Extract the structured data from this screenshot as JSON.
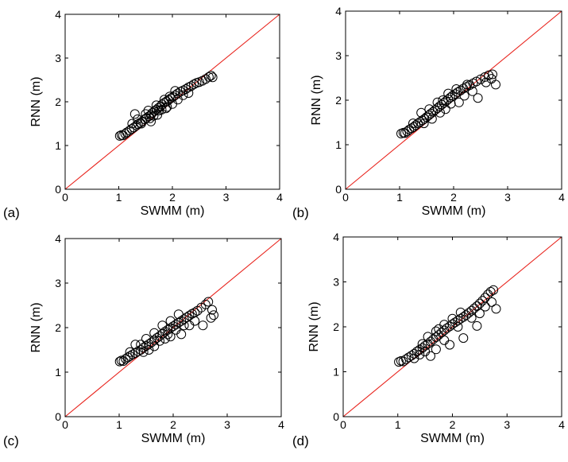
{
  "chart_data": [
    {
      "type": "scatter",
      "panel_label": "(a)",
      "xlabel": "SWMM (m)",
      "ylabel": "RNN (m)",
      "xlim": [
        0,
        4
      ],
      "ylim": [
        0,
        4
      ],
      "xticks": [
        "0",
        "1",
        "2",
        "3",
        "4"
      ],
      "yticks": [
        "0",
        "1",
        "2",
        "3",
        "4"
      ],
      "reference_line": {
        "from": [
          0,
          0
        ],
        "to": [
          4,
          4
        ],
        "color": "#e8211a"
      },
      "marker": "open-circle",
      "grid": false,
      "points": [
        [
          1.02,
          1.22
        ],
        [
          1.05,
          1.24
        ],
        [
          1.08,
          1.23
        ],
        [
          1.12,
          1.27
        ],
        [
          1.15,
          1.3
        ],
        [
          1.2,
          1.34
        ],
        [
          1.24,
          1.38
        ],
        [
          1.28,
          1.41
        ],
        [
          1.33,
          1.46
        ],
        [
          1.36,
          1.49
        ],
        [
          1.4,
          1.52
        ],
        [
          1.44,
          1.55
        ],
        [
          1.48,
          1.6
        ],
        [
          1.52,
          1.63
        ],
        [
          1.56,
          1.67
        ],
        [
          1.6,
          1.7
        ],
        [
          1.63,
          1.75
        ],
        [
          1.67,
          1.79
        ],
        [
          1.7,
          1.82
        ],
        [
          1.74,
          1.86
        ],
        [
          1.78,
          1.9
        ],
        [
          1.81,
          1.94
        ],
        [
          1.85,
          1.98
        ],
        [
          1.89,
          2.01
        ],
        [
          1.93,
          2.04
        ],
        [
          1.97,
          2.08
        ],
        [
          2.01,
          2.11
        ],
        [
          2.05,
          2.15
        ],
        [
          2.1,
          2.19
        ],
        [
          2.15,
          2.23
        ],
        [
          2.2,
          2.26
        ],
        [
          2.25,
          2.29
        ],
        [
          2.3,
          2.33
        ],
        [
          2.35,
          2.36
        ],
        [
          2.4,
          2.4
        ],
        [
          2.45,
          2.43
        ],
        [
          2.5,
          2.45
        ],
        [
          2.56,
          2.48
        ],
        [
          2.62,
          2.52
        ],
        [
          2.68,
          2.57
        ],
        [
          2.72,
          2.6
        ],
        [
          2.75,
          2.56
        ],
        [
          1.35,
          1.6
        ],
        [
          1.5,
          1.72
        ],
        [
          1.42,
          1.5
        ],
        [
          1.58,
          1.62
        ],
        [
          1.65,
          1.68
        ],
        [
          1.75,
          1.8
        ],
        [
          1.8,
          1.82
        ],
        [
          1.9,
          1.88
        ],
        [
          2.0,
          1.95
        ],
        [
          2.1,
          2.05
        ],
        [
          2.2,
          2.15
        ],
        [
          2.3,
          2.2
        ],
        [
          1.7,
          1.92
        ],
        [
          1.85,
          2.05
        ],
        [
          1.95,
          2.12
        ],
        [
          2.05,
          2.25
        ],
        [
          1.25,
          1.5
        ],
        [
          1.3,
          1.72
        ],
        [
          1.55,
          1.8
        ],
        [
          1.6,
          1.55
        ],
        [
          1.72,
          1.7
        ],
        [
          1.88,
          1.85
        ]
      ]
    },
    {
      "type": "scatter",
      "panel_label": "(b)",
      "xlabel": "SWMM (m)",
      "ylabel": "RNN (m)",
      "xlim": [
        0,
        4
      ],
      "ylim": [
        0,
        4
      ],
      "xticks": [
        "0",
        "1",
        "2",
        "3",
        "4"
      ],
      "yticks": [
        "0",
        "1",
        "2",
        "3",
        "4"
      ],
      "reference_line": {
        "from": [
          0,
          0
        ],
        "to": [
          4,
          4
        ],
        "color": "#e8211a"
      },
      "marker": "open-circle",
      "grid": false,
      "points": [
        [
          1.03,
          1.25
        ],
        [
          1.07,
          1.27
        ],
        [
          1.1,
          1.26
        ],
        [
          1.14,
          1.3
        ],
        [
          1.18,
          1.34
        ],
        [
          1.22,
          1.37
        ],
        [
          1.26,
          1.4
        ],
        [
          1.3,
          1.44
        ],
        [
          1.34,
          1.48
        ],
        [
          1.38,
          1.51
        ],
        [
          1.42,
          1.55
        ],
        [
          1.46,
          1.58
        ],
        [
          1.5,
          1.62
        ],
        [
          1.54,
          1.66
        ],
        [
          1.58,
          1.7
        ],
        [
          1.62,
          1.74
        ],
        [
          1.66,
          1.78
        ],
        [
          1.7,
          1.82
        ],
        [
          1.74,
          1.86
        ],
        [
          1.78,
          1.9
        ],
        [
          1.82,
          1.94
        ],
        [
          1.86,
          1.98
        ],
        [
          1.9,
          2.02
        ],
        [
          1.94,
          2.06
        ],
        [
          1.98,
          2.1
        ],
        [
          2.03,
          2.14
        ],
        [
          2.08,
          2.18
        ],
        [
          2.13,
          2.22
        ],
        [
          2.18,
          2.26
        ],
        [
          2.24,
          2.3
        ],
        [
          2.3,
          2.34
        ],
        [
          2.36,
          2.38
        ],
        [
          2.42,
          2.42
        ],
        [
          2.5,
          2.47
        ],
        [
          2.58,
          2.52
        ],
        [
          2.65,
          2.56
        ],
        [
          2.72,
          2.58
        ],
        [
          2.78,
          2.35
        ],
        [
          2.7,
          2.48
        ],
        [
          2.6,
          2.4
        ],
        [
          2.45,
          2.05
        ],
        [
          2.35,
          2.2
        ],
        [
          2.2,
          2.1
        ],
        [
          2.1,
          1.95
        ],
        [
          1.95,
          1.92
        ],
        [
          1.85,
          1.8
        ],
        [
          1.75,
          1.72
        ],
        [
          1.6,
          1.58
        ],
        [
          1.45,
          1.48
        ],
        [
          1.4,
          1.72
        ],
        [
          1.55,
          1.8
        ],
        [
          1.25,
          1.48
        ],
        [
          1.7,
          1.95
        ],
        [
          1.9,
          2.15
        ],
        [
          2.05,
          2.25
        ],
        [
          2.25,
          2.35
        ],
        [
          1.8,
          2.0
        ]
      ]
    },
    {
      "type": "scatter",
      "panel_label": "(c)",
      "xlabel": "SWMM (m)",
      "ylabel": "RNN (m)",
      "xlim": [
        0,
        4
      ],
      "ylim": [
        0,
        4
      ],
      "xticks": [
        "0",
        "1",
        "2",
        "3",
        "4"
      ],
      "yticks": [
        "0",
        "1",
        "2",
        "3",
        "4"
      ],
      "reference_line": {
        "from": [
          0,
          0
        ],
        "to": [
          4,
          4
        ],
        "color": "#e8211a"
      },
      "marker": "open-circle",
      "grid": false,
      "points": [
        [
          1.01,
          1.24
        ],
        [
          1.04,
          1.26
        ],
        [
          1.08,
          1.25
        ],
        [
          1.12,
          1.3
        ],
        [
          1.16,
          1.33
        ],
        [
          1.2,
          1.36
        ],
        [
          1.25,
          1.4
        ],
        [
          1.3,
          1.43
        ],
        [
          1.35,
          1.47
        ],
        [
          1.4,
          1.5
        ],
        [
          1.45,
          1.55
        ],
        [
          1.5,
          1.59
        ],
        [
          1.55,
          1.63
        ],
        [
          1.6,
          1.67
        ],
        [
          1.65,
          1.72
        ],
        [
          1.7,
          1.77
        ],
        [
          1.75,
          1.81
        ],
        [
          1.8,
          1.86
        ],
        [
          1.85,
          1.91
        ],
        [
          1.9,
          1.95
        ],
        [
          1.95,
          1.99
        ],
        [
          2.0,
          2.03
        ],
        [
          2.05,
          2.07
        ],
        [
          2.1,
          2.11
        ],
        [
          2.15,
          2.15
        ],
        [
          2.2,
          2.19
        ],
        [
          2.25,
          2.23
        ],
        [
          2.3,
          2.27
        ],
        [
          2.35,
          2.31
        ],
        [
          2.4,
          2.34
        ],
        [
          2.45,
          2.38
        ],
        [
          2.52,
          2.45
        ],
        [
          2.6,
          2.52
        ],
        [
          2.65,
          2.58
        ],
        [
          2.72,
          2.4
        ],
        [
          2.75,
          2.28
        ],
        [
          2.7,
          2.22
        ],
        [
          2.55,
          2.05
        ],
        [
          2.4,
          2.15
        ],
        [
          2.3,
          2.05
        ],
        [
          2.15,
          1.85
        ],
        [
          2.05,
          1.95
        ],
        [
          1.95,
          1.8
        ],
        [
          1.85,
          1.75
        ],
        [
          1.75,
          1.7
        ],
        [
          1.65,
          1.58
        ],
        [
          1.55,
          1.5
        ],
        [
          1.45,
          1.45
        ],
        [
          1.3,
          1.62
        ],
        [
          1.5,
          1.75
        ],
        [
          1.65,
          1.88
        ],
        [
          1.8,
          2.05
        ],
        [
          1.95,
          2.15
        ],
        [
          2.1,
          2.3
        ],
        [
          1.4,
          1.62
        ],
        [
          1.2,
          1.45
        ],
        [
          2.2,
          2.05
        ],
        [
          1.9,
          1.85
        ]
      ]
    },
    {
      "type": "scatter",
      "panel_label": "(d)",
      "xlabel": "SWMM (m)",
      "ylabel": "RNN (m)",
      "xlim": [
        0,
        4
      ],
      "ylim": [
        0,
        4
      ],
      "xticks": [
        "0",
        "1",
        "2",
        "3",
        "4"
      ],
      "yticks": [
        "0",
        "1",
        "2",
        "3",
        "4"
      ],
      "reference_line": {
        "from": [
          0,
          0
        ],
        "to": [
          4,
          4
        ],
        "color": "#e8211a"
      },
      "marker": "open-circle",
      "grid": false,
      "points": [
        [
          1.02,
          1.22
        ],
        [
          1.06,
          1.24
        ],
        [
          1.1,
          1.23
        ],
        [
          1.15,
          1.28
        ],
        [
          1.2,
          1.32
        ],
        [
          1.25,
          1.36
        ],
        [
          1.3,
          1.4
        ],
        [
          1.35,
          1.45
        ],
        [
          1.4,
          1.49
        ],
        [
          1.45,
          1.53
        ],
        [
          1.5,
          1.58
        ],
        [
          1.55,
          1.62
        ],
        [
          1.6,
          1.67
        ],
        [
          1.65,
          1.72
        ],
        [
          1.7,
          1.77
        ],
        [
          1.75,
          1.82
        ],
        [
          1.8,
          1.87
        ],
        [
          1.85,
          1.92
        ],
        [
          1.9,
          1.97
        ],
        [
          1.95,
          2.01
        ],
        [
          2.0,
          2.06
        ],
        [
          2.05,
          2.1
        ],
        [
          2.1,
          2.14
        ],
        [
          2.15,
          2.18
        ],
        [
          2.2,
          2.22
        ],
        [
          2.25,
          2.26
        ],
        [
          2.3,
          2.31
        ],
        [
          2.35,
          2.36
        ],
        [
          2.4,
          2.41
        ],
        [
          2.45,
          2.46
        ],
        [
          2.5,
          2.52
        ],
        [
          2.55,
          2.58
        ],
        [
          2.6,
          2.65
        ],
        [
          2.65,
          2.72
        ],
        [
          2.7,
          2.78
        ],
        [
          2.75,
          2.82
        ],
        [
          2.8,
          2.4
        ],
        [
          2.72,
          2.55
        ],
        [
          2.6,
          2.45
        ],
        [
          2.5,
          2.3
        ],
        [
          2.45,
          2.02
        ],
        [
          2.35,
          2.2
        ],
        [
          2.2,
          1.75
        ],
        [
          2.1,
          2.0
        ],
        [
          1.95,
          1.6
        ],
        [
          1.85,
          1.7
        ],
        [
          1.7,
          1.5
        ],
        [
          1.6,
          1.35
        ],
        [
          1.5,
          1.45
        ],
        [
          1.4,
          1.38
        ],
        [
          1.3,
          1.3
        ],
        [
          1.55,
          1.78
        ],
        [
          1.7,
          1.9
        ],
        [
          1.85,
          2.05
        ],
        [
          2.0,
          2.18
        ],
        [
          2.15,
          2.32
        ],
        [
          1.45,
          1.62
        ],
        [
          1.75,
          1.95
        ]
      ]
    }
  ],
  "colors": {
    "reference_line": "#e8211a",
    "marker": "#000000",
    "axes": "#000000"
  }
}
